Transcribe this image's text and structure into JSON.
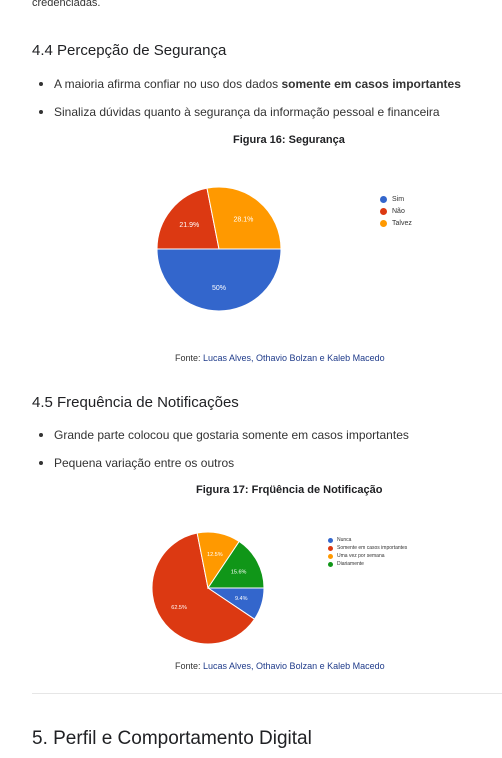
{
  "intro_fragment": "credenciadas.",
  "section_44": {
    "heading": "4.4 Percepção de Segurança",
    "bullets": [
      {
        "text": "A maioria afirma confiar no uso dos dados ",
        "strong": "somente em casos importantes"
      },
      {
        "text": "Sinaliza dúvidas quanto à segurança da informação pessoal e financeira",
        "strong": ""
      }
    ],
    "figure_title": "Figura 16: Segurança",
    "source_prefix": "Fonte: ",
    "source_authors": "Lucas Alves, Othavio Bolzan e Kaleb Macedo"
  },
  "section_45": {
    "heading": "4.5 Frequência de Notificações",
    "bullets": [
      {
        "text": "Grande parte colocou que gostaria somente em casos importantes",
        "strong": ""
      },
      {
        "text": "Pequena variação entre os outros",
        "strong": ""
      }
    ],
    "figure_title": "Figura 17: Frqüência de Notificação",
    "source_prefix": "Fonte: ",
    "source_authors": "Lucas Alves, Othavio Bolzan e Kaleb Macedo"
  },
  "section_5": {
    "heading": "5. Perfil e Comportamento Digital"
  },
  "chart_data": [
    {
      "type": "pie",
      "categories": [
        "Sim",
        "Não",
        "Talvez"
      ],
      "values": [
        50,
        21.9,
        28.1
      ],
      "labels": [
        "50%",
        "21.9%",
        "28.1%"
      ],
      "colors": [
        "#3366cc",
        "#dc3912",
        "#ff9900"
      ],
      "legend": "right"
    },
    {
      "type": "pie",
      "categories": [
        "Nunca",
        "Somente em casos importantes",
        "Uma vez por semana",
        "Diariamente"
      ],
      "values": [
        9.4,
        62.5,
        12.5,
        15.6
      ],
      "labels": [
        "9.4%",
        "62.5%",
        "12.5%",
        "15.6%"
      ],
      "colors": [
        "#3366cc",
        "#dc3912",
        "#ff9900",
        "#109618"
      ],
      "legend": "right"
    }
  ]
}
